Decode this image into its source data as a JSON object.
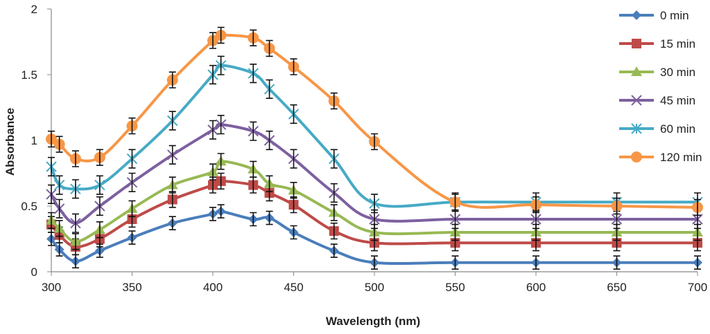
{
  "chart_data": {
    "type": "line",
    "title": "",
    "xlabel": "Wavelength (nm)",
    "ylabel": "Absorbance",
    "xlim": [
      300,
      700
    ],
    "ylim": [
      0,
      2
    ],
    "x_ticks": [
      "300",
      "350",
      "400",
      "450",
      "500",
      "550",
      "600",
      "650",
      "700"
    ],
    "y_ticks": [
      "0",
      "0.5",
      "1",
      "1.5",
      "2"
    ],
    "grid": false,
    "legend": "right",
    "smooth": true,
    "error_bars": true,
    "x": [
      300,
      305,
      315,
      330,
      350,
      375,
      400,
      405,
      425,
      435,
      450,
      475,
      500,
      550,
      600,
      650,
      700
    ],
    "series": [
      {
        "name": "0 min",
        "color": "#4a7ebb",
        "marker": "diamond",
        "error": 0.05,
        "values": [
          0.25,
          0.17,
          0.08,
          0.16,
          0.26,
          0.37,
          0.44,
          0.46,
          0.4,
          0.41,
          0.3,
          0.16,
          0.07,
          0.07,
          0.07,
          0.07,
          0.07
        ]
      },
      {
        "name": "15 min",
        "color": "#be4b48",
        "marker": "square",
        "error": 0.06,
        "values": [
          0.36,
          0.28,
          0.19,
          0.25,
          0.4,
          0.55,
          0.66,
          0.69,
          0.66,
          0.6,
          0.51,
          0.31,
          0.22,
          0.22,
          0.22,
          0.22,
          0.22
        ]
      },
      {
        "name": "30 min",
        "color": "#98b954",
        "marker": "triangle",
        "error": 0.06,
        "values": [
          0.39,
          0.33,
          0.23,
          0.32,
          0.48,
          0.66,
          0.76,
          0.84,
          0.78,
          0.67,
          0.62,
          0.45,
          0.3,
          0.3,
          0.3,
          0.3,
          0.3
        ]
      },
      {
        "name": "45 min",
        "color": "#7d60a0",
        "marker": "x",
        "error": 0.07,
        "values": [
          0.59,
          0.48,
          0.37,
          0.5,
          0.68,
          0.89,
          1.08,
          1.12,
          1.07,
          1.0,
          0.86,
          0.6,
          0.4,
          0.4,
          0.4,
          0.4,
          0.4
        ]
      },
      {
        "name": "60 min",
        "color": "#46aac5",
        "marker": "asterisk",
        "error": 0.07,
        "values": [
          0.8,
          0.66,
          0.63,
          0.66,
          0.86,
          1.15,
          1.5,
          1.57,
          1.51,
          1.39,
          1.2,
          0.86,
          0.52,
          0.53,
          0.53,
          0.53,
          0.53
        ]
      },
      {
        "name": "120 min",
        "color": "#f79646",
        "marker": "circle",
        "error": 0.06,
        "values": [
          1.01,
          0.97,
          0.86,
          0.87,
          1.11,
          1.46,
          1.76,
          1.8,
          1.78,
          1.7,
          1.56,
          1.3,
          0.99,
          0.53,
          0.51,
          0.5,
          0.49
        ]
      }
    ]
  }
}
